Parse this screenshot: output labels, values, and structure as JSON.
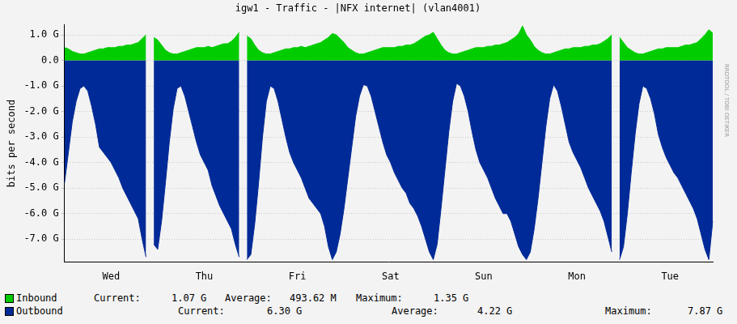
{
  "chart_data": {
    "type": "area",
    "title": "igw1 - Traffic - |NFX internet| (vlan4001)",
    "y_label": "bits per second",
    "watermark": "RRDTOOL / TOBI OETIKER",
    "grid": true,
    "legend": "bottom-left",
    "ylim": [
      -7.9,
      1.4
    ],
    "yticks": [
      {
        "value": 1,
        "label": "1.0 G"
      },
      {
        "value": 0,
        "label": "0.0"
      },
      {
        "value": -1,
        "label": "-1.0 G"
      },
      {
        "value": -2,
        "label": "-2.0 G"
      },
      {
        "value": -3,
        "label": "-3.0 G"
      },
      {
        "value": -4,
        "label": "-4.0 G"
      },
      {
        "value": -5,
        "label": "-5.0 G"
      },
      {
        "value": -6,
        "label": "-6.0 G"
      },
      {
        "value": -7,
        "label": "-7.0 G"
      }
    ],
    "categories": [
      null,
      null,
      null,
      null,
      null,
      null,
      null,
      null,
      null,
      null,
      null,
      null,
      "Wed",
      null,
      null,
      null,
      null,
      null,
      null,
      null,
      null,
      null,
      null,
      null,
      null,
      null,
      null,
      null,
      null,
      null,
      null,
      null,
      null,
      null,
      null,
      null,
      "Thu",
      null,
      null,
      null,
      null,
      null,
      null,
      null,
      null,
      null,
      null,
      null,
      null,
      null,
      null,
      null,
      null,
      null,
      null,
      null,
      null,
      null,
      null,
      null,
      "Fri",
      null,
      null,
      null,
      null,
      null,
      null,
      null,
      null,
      null,
      null,
      null,
      null,
      null,
      null,
      null,
      null,
      null,
      null,
      null,
      null,
      null,
      null,
      null,
      "Sat",
      null,
      null,
      null,
      null,
      null,
      null,
      null,
      null,
      null,
      null,
      null,
      null,
      null,
      null,
      null,
      null,
      null,
      null,
      null,
      null,
      null,
      null,
      null,
      "Sun",
      null,
      null,
      null,
      null,
      null,
      null,
      null,
      null,
      null,
      null,
      null,
      null,
      null,
      null,
      null,
      null,
      null,
      null,
      null,
      null,
      null,
      null,
      null,
      "Mon",
      null,
      null,
      null,
      null,
      null,
      null,
      null,
      null,
      null,
      null,
      null,
      null,
      null,
      null,
      null,
      null,
      null,
      null,
      null,
      null,
      null,
      null,
      null,
      "Tue",
      null,
      null,
      null,
      null,
      null,
      null,
      null,
      null,
      null,
      null,
      null
    ],
    "stat_labels": [
      "Current:",
      "Average:",
      "Maximum:"
    ],
    "series": [
      {
        "name": "Inbound",
        "color": "#00cc00",
        "stats": [
          {
            "value": 1.07,
            "label": "1.07 G"
          },
          {
            "value": 0.49362,
            "label": "493.62 M"
          },
          {
            "value": 1.35,
            "label": "1.35 G"
          }
        ],
        "values": [
          0.5,
          0.45,
          0.35,
          0.3,
          0.25,
          0.25,
          0.3,
          0.35,
          0.4,
          0.45,
          0.45,
          0.5,
          0.5,
          0.5,
          0.55,
          0.55,
          0.6,
          0.6,
          0.65,
          0.7,
          0.85,
          1.0,
          null,
          0.9,
          0.8,
          0.6,
          0.4,
          0.3,
          0.25,
          0.25,
          0.3,
          0.35,
          0.4,
          0.45,
          0.5,
          0.5,
          0.5,
          0.55,
          0.5,
          0.55,
          0.6,
          0.65,
          0.65,
          0.75,
          0.9,
          1.1,
          null,
          0.95,
          0.85,
          0.6,
          0.4,
          0.3,
          0.25,
          0.25,
          0.3,
          0.35,
          0.4,
          0.45,
          0.45,
          0.5,
          0.5,
          0.55,
          0.5,
          0.55,
          0.6,
          0.65,
          0.7,
          0.8,
          0.9,
          1.05,
          1.0,
          0.85,
          0.7,
          0.5,
          0.4,
          0.3,
          0.25,
          0.25,
          0.3,
          0.35,
          0.4,
          0.45,
          0.5,
          0.5,
          0.5,
          0.5,
          0.55,
          0.55,
          0.6,
          0.6,
          0.65,
          0.75,
          0.85,
          0.95,
          1.0,
          1.1,
          0.85,
          0.6,
          0.4,
          0.3,
          0.25,
          0.25,
          0.3,
          0.35,
          0.4,
          0.45,
          0.5,
          0.5,
          0.5,
          0.55,
          0.55,
          0.6,
          0.6,
          0.65,
          0.7,
          0.8,
          0.9,
          1.05,
          1.35,
          1.0,
          0.8,
          0.55,
          0.4,
          0.3,
          0.25,
          0.25,
          0.3,
          0.35,
          0.4,
          0.45,
          0.45,
          0.5,
          0.5,
          0.5,
          0.55,
          0.55,
          0.6,
          0.6,
          0.65,
          0.75,
          0.85,
          1.0,
          null,
          0.9,
          0.7,
          0.5,
          0.4,
          0.3,
          0.25,
          0.25,
          0.3,
          0.35,
          0.4,
          0.45,
          0.45,
          0.5,
          0.5,
          0.5,
          0.5,
          0.55,
          0.6,
          0.6,
          0.65,
          0.7,
          0.85,
          1.0,
          1.2,
          1.07
        ]
      },
      {
        "name": "Outbound",
        "color": "#002a97",
        "stats": [
          {
            "value": 6.3,
            "label": "6.30 G"
          },
          {
            "value": 4.22,
            "label": "4.22 G"
          },
          {
            "value": 7.87,
            "label": "7.87 G"
          }
        ],
        "values": [
          -4.8,
          -3.6,
          -2.4,
          -1.6,
          -1.1,
          -1.0,
          -1.2,
          -1.8,
          -2.5,
          -3.4,
          -3.6,
          -3.8,
          -4.0,
          -4.3,
          -4.6,
          -5.0,
          -5.3,
          -5.6,
          -5.9,
          -6.2,
          -7.0,
          -7.7,
          null,
          -7.2,
          -7.4,
          -6.3,
          -4.8,
          -3.2,
          -1.9,
          -1.1,
          -1.0,
          -1.4,
          -2.0,
          -2.6,
          -3.2,
          -3.7,
          -4.0,
          -4.3,
          -4.9,
          -5.3,
          -5.7,
          -6.0,
          -6.3,
          -6.6,
          -7.2,
          -7.7,
          null,
          -7.8,
          -7.6,
          -6.4,
          -4.8,
          -3.0,
          -1.6,
          -1.0,
          -1.1,
          -1.6,
          -2.3,
          -3.0,
          -3.6,
          -4.0,
          -4.3,
          -4.6,
          -5.0,
          -5.4,
          -5.6,
          -5.8,
          -6.0,
          -6.5,
          -7.3,
          -7.8,
          -7.5,
          -6.8,
          -5.8,
          -4.6,
          -3.4,
          -2.2,
          -1.4,
          -0.95,
          -1.0,
          -1.4,
          -2.0,
          -2.6,
          -3.2,
          -3.7,
          -4.0,
          -4.4,
          -4.7,
          -5.0,
          -5.2,
          -5.6,
          -5.8,
          -6.1,
          -6.5,
          -7.0,
          -7.5,
          -7.8,
          -7.2,
          -5.8,
          -4.3,
          -2.8,
          -1.6,
          -0.9,
          -1.0,
          -1.4,
          -2.0,
          -2.8,
          -3.5,
          -4.0,
          -4.3,
          -4.6,
          -5.0,
          -5.4,
          -5.7,
          -6.0,
          -6.0,
          -6.3,
          -6.8,
          -7.3,
          -7.6,
          -7.8,
          -7.5,
          -6.6,
          -5.4,
          -4.0,
          -2.6,
          -1.5,
          -0.95,
          -1.2,
          -1.8,
          -2.5,
          -3.2,
          -3.6,
          -3.9,
          -4.2,
          -4.6,
          -5.0,
          -5.3,
          -5.6,
          -5.9,
          -6.3,
          -6.9,
          -7.5,
          null,
          -7.8,
          -7.3,
          -6.0,
          -4.4,
          -2.9,
          -1.7,
          -1.0,
          -1.1,
          -1.5,
          -2.1,
          -2.9,
          -3.4,
          -3.8,
          -4.1,
          -4.4,
          -4.6,
          -4.9,
          -5.2,
          -5.5,
          -5.8,
          -6.2,
          -6.8,
          -7.4,
          -7.8,
          -6.3
        ]
      }
    ]
  }
}
